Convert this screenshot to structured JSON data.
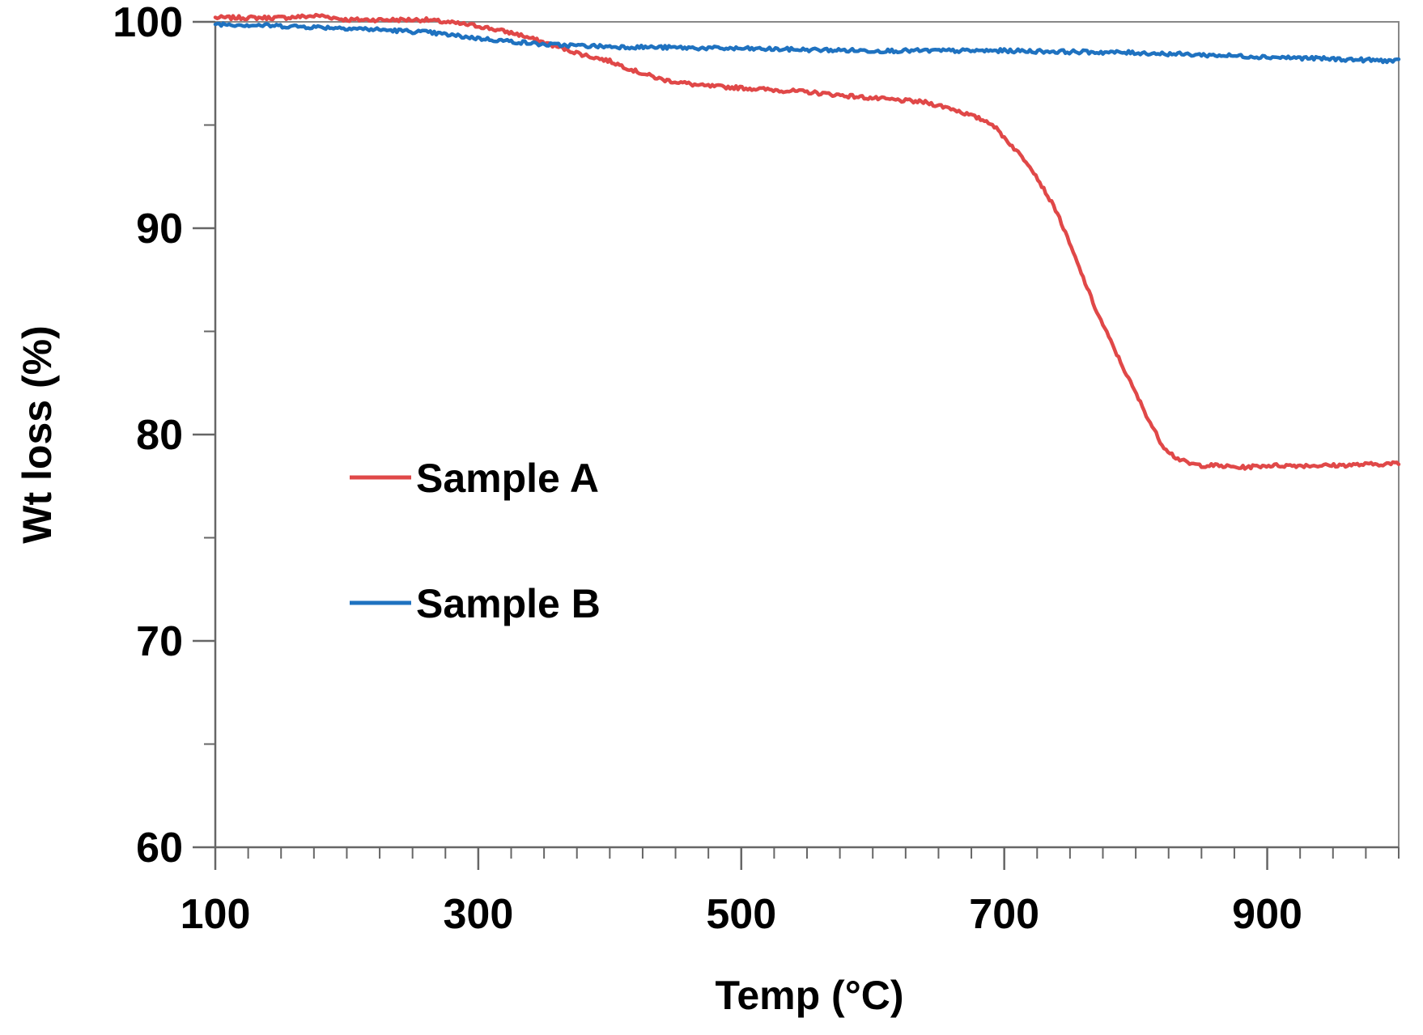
{
  "chart_data": {
    "type": "line",
    "title": "",
    "xlabel": "Temp (°C)",
    "ylabel": "Wt loss (%)",
    "xlim": [
      100,
      1000
    ],
    "ylim": [
      60,
      100
    ],
    "x_major_ticks": [
      100,
      300,
      500,
      700,
      900
    ],
    "x_minor_step": 25,
    "y_major_ticks": [
      60,
      70,
      80,
      90,
      100
    ],
    "y_minor_step": 5,
    "grid": false,
    "legend_position": "center-left",
    "series": [
      {
        "name": "Sample A",
        "color": "#e04848",
        "x": [
          100,
          150,
          180,
          200,
          260,
          300,
          330,
          360,
          380,
          400,
          420,
          440,
          470,
          500,
          550,
          600,
          640,
          660,
          690,
          700,
          720,
          740,
          760,
          770,
          790,
          810,
          820,
          830,
          840,
          850,
          860,
          880,
          900,
          950,
          1000
        ],
        "y": [
          100.2,
          100.2,
          100.3,
          100.1,
          100.1,
          99.8,
          99.4,
          98.8,
          98.4,
          98.1,
          97.6,
          97.2,
          96.9,
          96.8,
          96.6,
          96.3,
          96.1,
          95.8,
          95.1,
          94.4,
          93.0,
          90.8,
          87.6,
          86.0,
          83.3,
          80.7,
          79.5,
          78.9,
          78.6,
          78.5,
          78.5,
          78.4,
          78.5,
          78.5,
          78.6
        ]
      },
      {
        "name": "Sample B",
        "color": "#1f72c0",
        "x": [
          100,
          150,
          200,
          260,
          300,
          350,
          400,
          500,
          600,
          700,
          800,
          900,
          1000
        ],
        "y": [
          99.9,
          99.8,
          99.7,
          99.5,
          99.2,
          98.9,
          98.8,
          98.7,
          98.6,
          98.6,
          98.5,
          98.3,
          98.1
        ]
      }
    ]
  }
}
